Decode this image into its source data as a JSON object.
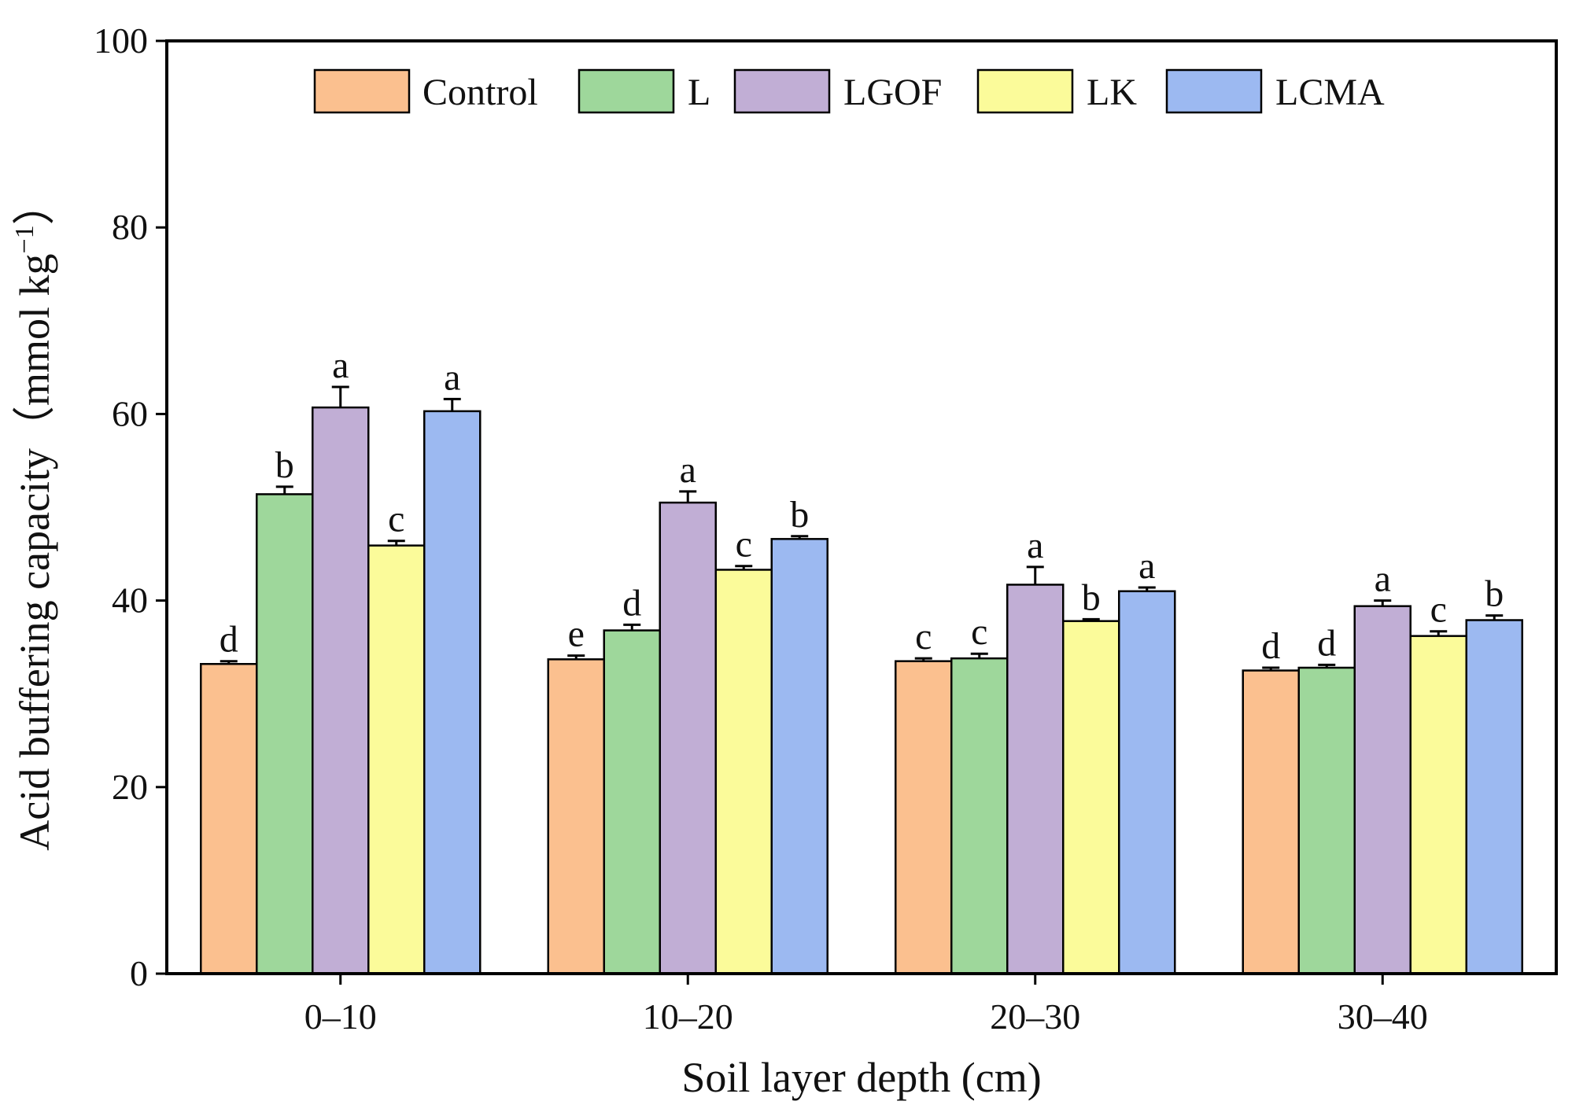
{
  "chart_data": {
    "type": "bar",
    "title": "",
    "xlabel": "Soil layer depth (cm)",
    "ylabel": "Acid buffering capacity（mmol kg",
    "ylabel_superscript": "−1",
    "ylabel_close": "）",
    "ylim": [
      0,
      100
    ],
    "yticks": [
      0,
      20,
      40,
      60,
      80,
      100
    ],
    "grid": false,
    "legend_position": "top",
    "categories": [
      "0–10",
      "10–20",
      "20–30",
      "30–40"
    ],
    "series": [
      {
        "name": "Control",
        "color": "#FBC08F",
        "values": [
          33.2,
          33.7,
          33.5,
          32.5
        ],
        "errors": [
          0.3,
          0.4,
          0.3,
          0.3
        ],
        "letters": [
          "d",
          "e",
          "c",
          "d"
        ]
      },
      {
        "name": "L",
        "color": "#9ED79B",
        "values": [
          51.4,
          36.8,
          33.8,
          32.8
        ],
        "errors": [
          0.8,
          0.6,
          0.5,
          0.3
        ],
        "letters": [
          "b",
          "d",
          "c",
          "d"
        ]
      },
      {
        "name": "LGOF",
        "color": "#C1AED5",
        "values": [
          60.7,
          50.5,
          41.7,
          39.4
        ],
        "errors": [
          2.2,
          1.2,
          1.9,
          0.6
        ],
        "letters": [
          "a",
          "a",
          "a",
          "a"
        ]
      },
      {
        "name": "LK",
        "color": "#FBFB9A",
        "values": [
          45.9,
          43.3,
          37.8,
          36.2
        ],
        "errors": [
          0.5,
          0.4,
          0.2,
          0.5
        ],
        "letters": [
          "c",
          "c",
          "b",
          "c"
        ]
      },
      {
        "name": "LCMA",
        "color": "#9CB9F1",
        "values": [
          60.3,
          46.6,
          41.0,
          37.9
        ],
        "errors": [
          1.3,
          0.3,
          0.4,
          0.5
        ],
        "letters": [
          "a",
          "b",
          "a",
          "b"
        ]
      }
    ]
  }
}
